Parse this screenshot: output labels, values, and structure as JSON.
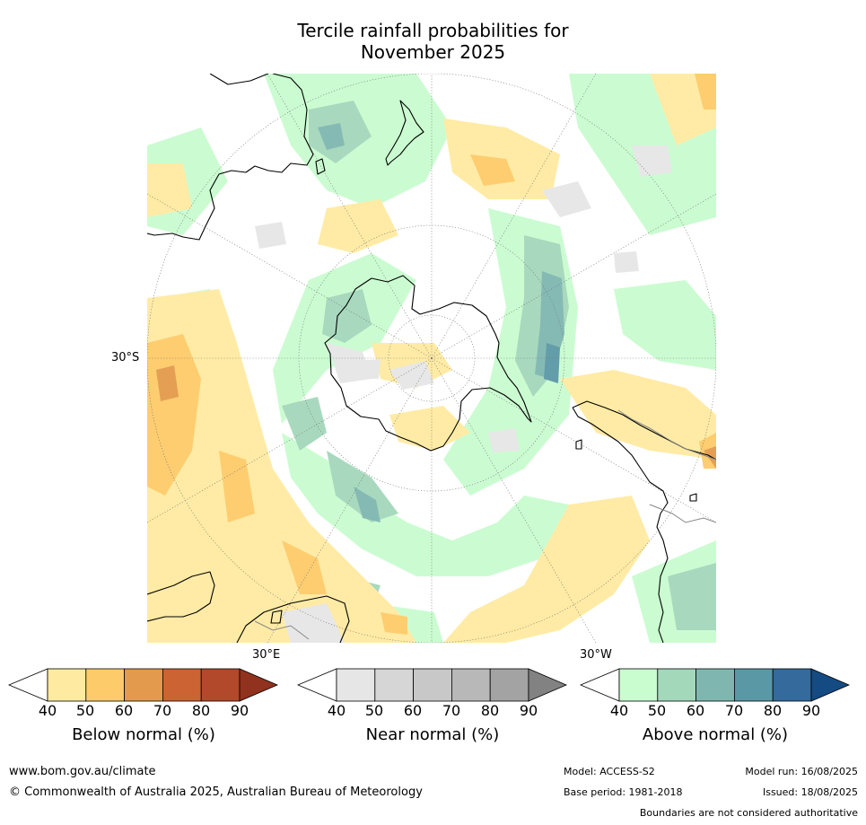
{
  "title": {
    "line1": "Tercile rainfall probabilities for",
    "line2": "November 2025"
  },
  "map": {
    "projection": "south-polar-stereographic",
    "lat_label": "30°S",
    "lon_labels": {
      "east": "30°E",
      "west": "30°W"
    }
  },
  "colorbars": [
    {
      "name": "Below normal (%)",
      "ticks": [
        "40",
        "50",
        "60",
        "70",
        "80",
        "90"
      ],
      "colors": [
        "#ffffff",
        "#ffeaa1",
        "#fdcb69",
        "#e39a4c",
        "#cc6332",
        "#b2492a",
        "#91321e"
      ]
    },
    {
      "name": "Near normal (%)",
      "ticks": [
        "40",
        "50",
        "60",
        "70",
        "80",
        "90"
      ],
      "colors": [
        "#ffffff",
        "#e6e6e6",
        "#d6d6d6",
        "#c8c8c8",
        "#b8b8b8",
        "#a3a3a3",
        "#828282"
      ]
    },
    {
      "name": "Above normal (%)",
      "ticks": [
        "40",
        "50",
        "60",
        "70",
        "80",
        "90"
      ],
      "colors": [
        "#ffffff",
        "#c9fccf",
        "#a4d8bb",
        "#7fb7b0",
        "#5b98a6",
        "#346a9c",
        "#154b83"
      ]
    }
  ],
  "footer": {
    "website": "www.bom.gov.au/climate",
    "copyright": "© Commonwealth of Australia 2025, Australian Bureau of Meteorology",
    "model": "Model: ACCESS-S2",
    "model_run": "Model run: 16/08/2025",
    "base_period": "Base period: 1981-2018",
    "issued": "Issued: 18/08/2025",
    "disclaimer": "Boundaries are not considered authoritative"
  }
}
